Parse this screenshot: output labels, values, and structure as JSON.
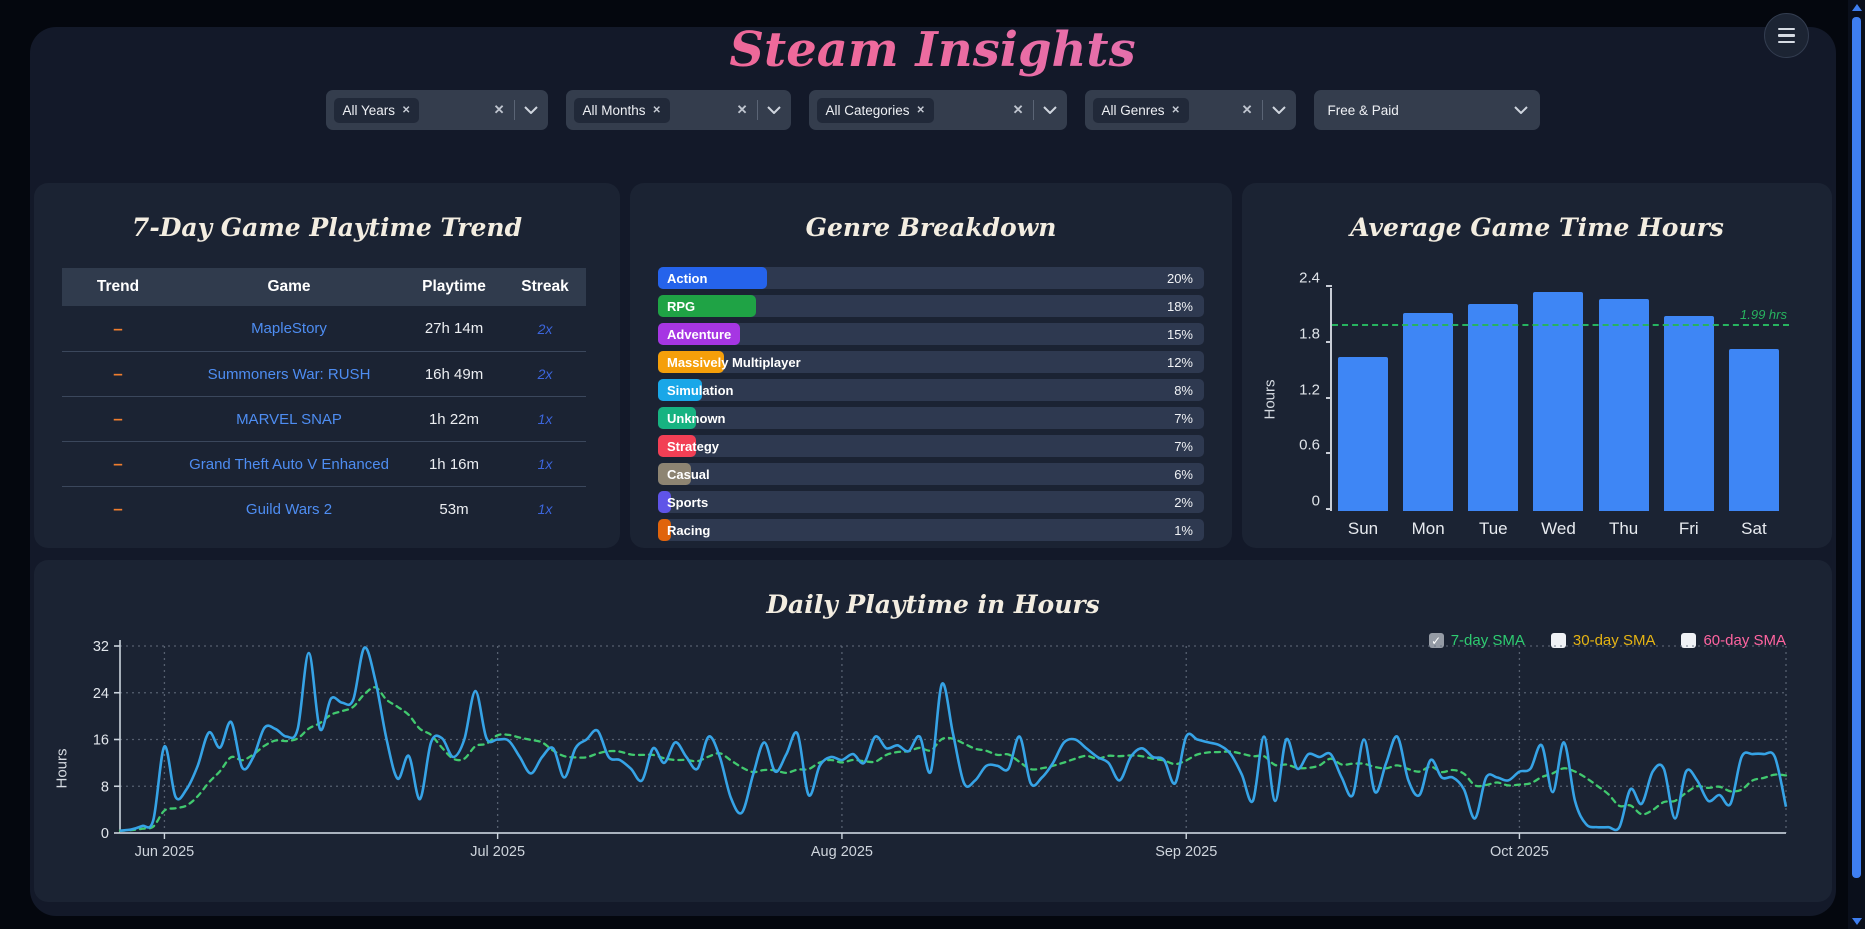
{
  "header": {
    "title": "Steam Insights"
  },
  "filters": {
    "multiselects": [
      {
        "chip": "All Years"
      },
      {
        "chip": "All Months"
      },
      {
        "chip": "All Categories"
      },
      {
        "chip": "All Genres"
      }
    ],
    "multiselect_widths": [
      222,
      225,
      258,
      211
    ],
    "price_select": {
      "value": "Free & Paid"
    }
  },
  "trend_table": {
    "title": "7-Day Game Playtime Trend",
    "columns": [
      "Trend",
      "Game",
      "Playtime",
      "Streak"
    ],
    "rows": [
      {
        "trend": "–",
        "game": "MapleStory",
        "playtime": "27h 14m",
        "streak": "2x"
      },
      {
        "trend": "–",
        "game": "Summoners War: RUSH",
        "playtime": "16h 49m",
        "streak": "2x"
      },
      {
        "trend": "–",
        "game": "MARVEL SNAP",
        "playtime": "1h 22m",
        "streak": "1x"
      },
      {
        "trend": "–",
        "game": "Grand Theft Auto V Enhanced",
        "playtime": "1h 16m",
        "streak": "1x"
      },
      {
        "trend": "–",
        "game": "Guild Wars 2",
        "playtime": "53m",
        "streak": "1x"
      }
    ]
  },
  "chart_data": [
    {
      "type": "bar",
      "name": "genre_breakdown",
      "title": "Genre Breakdown",
      "orientation": "horizontal",
      "categories": [
        "Action",
        "RPG",
        "Adventure",
        "Massively Multiplayer",
        "Simulation",
        "Unknown",
        "Strategy",
        "Casual",
        "Sports",
        "Racing"
      ],
      "values": [
        20,
        18,
        15,
        12,
        8,
        7,
        7,
        6,
        2,
        1
      ],
      "value_labels": [
        "20%",
        "18%",
        "15%",
        "12%",
        "8%",
        "7%",
        "7%",
        "6%",
        "2%",
        "1%"
      ],
      "bar_colors": [
        "#2563eb",
        "#1fa345",
        "#a636e3",
        "#f59f0a",
        "#19a7e8",
        "#17b381",
        "#f23f55",
        "#8d8472",
        "#5f54e8",
        "#e0640c"
      ],
      "track_color": "#2e3950",
      "xlim": [
        0,
        100
      ]
    },
    {
      "type": "bar",
      "name": "average_game_time",
      "title": "Average Game Time Hours",
      "categories": [
        "Sun",
        "Mon",
        "Tue",
        "Wed",
        "Thu",
        "Fri",
        "Sat"
      ],
      "values": [
        1.66,
        2.13,
        2.23,
        2.36,
        2.28,
        2.1,
        1.74
      ],
      "ylabel": "Hours",
      "yticks": [
        0,
        0.6,
        1.2,
        1.8,
        2.4
      ],
      "ylim": [
        0,
        2.4
      ],
      "bar_color": "#3e86f5",
      "ref_line": {
        "value": 1.99,
        "label": "1.99 hrs",
        "color": "#27b35f",
        "style": "dashed"
      }
    },
    {
      "type": "line",
      "name": "daily_playtime",
      "title": "Daily Playtime in Hours",
      "ylabel": "Hours",
      "yticks": [
        0,
        8,
        16,
        24,
        32
      ],
      "ylim": [
        0,
        32
      ],
      "x_start_label_offsets": [
        4,
        34,
        65,
        96,
        126
      ],
      "x_tick_labels": [
        "Jun 2025",
        "Jul 2025",
        "Aug 2025",
        "Sep 2025",
        "Oct 2025"
      ],
      "line_color": "#36a3e6",
      "sma_color": "#41c96f",
      "grid": true,
      "legend_position": "top-right",
      "legend": [
        {
          "label": "7-day SMA",
          "color": "#2ecc71",
          "checked": true
        },
        {
          "label": "30-day SMA",
          "color": "#e6b413",
          "checked": false
        },
        {
          "label": "60-day SMA",
          "color": "#ff64a0",
          "checked": false
        }
      ],
      "values": [
        0.4,
        0.6,
        1.2,
        2.2,
        14.8,
        6.2,
        7.5,
        11.5,
        17.2,
        14.6,
        19.0,
        11.2,
        13.0,
        18.0,
        17.8,
        16.5,
        17.8,
        30.8,
        17.8,
        23.0,
        22.3,
        22.8,
        31.7,
        26.0,
        16.0,
        9.3,
        13.2,
        5.8,
        15.5,
        16.2,
        13.0,
        16.0,
        24.3,
        16.2,
        16.0,
        15.8,
        13.0,
        10.2,
        13.0,
        14.5,
        9.5,
        14.5,
        16.0,
        17.5,
        13.0,
        12.5,
        11.0,
        9.0,
        14.5,
        12.0,
        15.5,
        13.0,
        11.0,
        16.5,
        13.0,
        6.0,
        3.5,
        10.0,
        15.5,
        10.5,
        13.5,
        17.0,
        6.5,
        11.5,
        13.0,
        12.5,
        13.5,
        12.0,
        16.5,
        14.5,
        15.0,
        14.0,
        16.5,
        10.5,
        25.5,
        17.0,
        8.5,
        9.0,
        11.5,
        11.5,
        11.0,
        16.5,
        8.5,
        9.5,
        12.0,
        15.5,
        16.0,
        14.5,
        13.0,
        12.0,
        9.0,
        13.0,
        14.5,
        13.0,
        12.5,
        8.5,
        16.5,
        16.0,
        15.5,
        15.0,
        13.5,
        10.0,
        5.5,
        16.5,
        5.5,
        16.0,
        11.0,
        13.5,
        13.0,
        13.5,
        9.5,
        6.5,
        16.0,
        7.0,
        12.0,
        16.5,
        9.0,
        6.5,
        12.5,
        9.5,
        9.5,
        7.5,
        2.5,
        9.5,
        9.5,
        9.0,
        10.5,
        11.0,
        15.0,
        7.0,
        15.5,
        5.5,
        1.5,
        1.0,
        1.0,
        1.0,
        7.5,
        5.0,
        10.5,
        11.0,
        2.5,
        10.5,
        9.0,
        5.5,
        6.5,
        5.0,
        13.0,
        13.5,
        13.5,
        13.0,
        4.5
      ]
    }
  ]
}
